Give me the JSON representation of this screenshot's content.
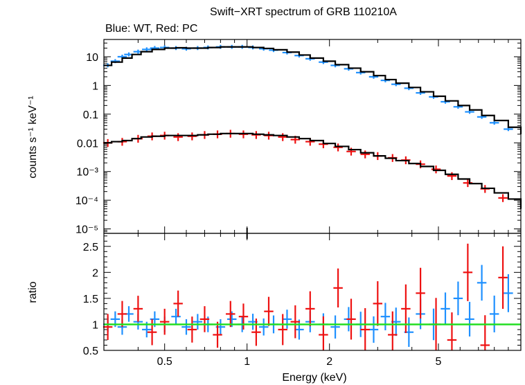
{
  "chart_data": {
    "type": "scatter",
    "title": "Swift−XRT spectrum of GRB 110210A",
    "subtitle": "Blue: WT, Red: PC",
    "xlabel": "Energy (keV)",
    "x_scale": "log",
    "xlim": [
      0.3,
      10
    ],
    "x_ticks": [
      {
        "value": 0.5,
        "label": "0.5"
      },
      {
        "value": 1,
        "label": "1"
      },
      {
        "value": 2,
        "label": "2"
      },
      {
        "value": 5,
        "label": "5"
      }
    ],
    "colors": {
      "wt": "#1e90ff",
      "pc": "#ee1111",
      "model": "#000000",
      "unity": "#22dd22"
    },
    "top_panel": {
      "ylabel": "counts s⁻¹ keV⁻¹",
      "y_scale": "log",
      "ylim": [
        7e-06,
        40
      ],
      "y_ticks": [
        {
          "value": 10,
          "label": "10"
        },
        {
          "value": 1,
          "label": "1"
        },
        {
          "value": 0.1,
          "label": "0.1"
        },
        {
          "value": 0.01,
          "label": "0.01"
        },
        {
          "value": 0.001,
          "label": "10⁻³"
        },
        {
          "value": 0.0001,
          "label": "10⁻⁴"
        },
        {
          "value": 1e-05,
          "label": "10⁻⁵"
        }
      ],
      "series": [
        {
          "key": "wt",
          "x": [
            0.31,
            0.33,
            0.35,
            0.37,
            0.4,
            0.43,
            0.46,
            0.5,
            0.55,
            0.6,
            0.66,
            0.72,
            0.8,
            0.88,
            0.96,
            1.05,
            1.15,
            1.25,
            1.4,
            1.55,
            1.7,
            1.9,
            2.1,
            2.35,
            2.6,
            2.9,
            3.2,
            3.5,
            3.9,
            4.3,
            4.8,
            5.3,
            5.9,
            6.5,
            7.2,
            8,
            9
          ],
          "y": [
            5,
            7,
            10,
            12,
            15,
            18,
            20,
            21,
            20,
            19,
            20,
            21,
            22,
            22,
            22,
            21,
            19,
            17,
            14,
            11,
            8.5,
            6.5,
            5,
            3.8,
            2.8,
            2.0,
            1.5,
            1.1,
            0.8,
            0.55,
            0.4,
            0.27,
            0.18,
            0.12,
            0.08,
            0.05,
            0.03
          ]
        },
        {
          "key": "pc",
          "x": [
            0.31,
            0.35,
            0.4,
            0.45,
            0.5,
            0.56,
            0.63,
            0.7,
            0.78,
            0.87,
            0.97,
            1.08,
            1.2,
            1.35,
            1.5,
            1.7,
            1.9,
            2.15,
            2.4,
            2.7,
            3.0,
            3.4,
            3.8,
            4.3,
            4.9,
            5.6,
            6.4,
            7.4,
            8.6
          ],
          "y": [
            0.01,
            0.011,
            0.014,
            0.017,
            0.018,
            0.016,
            0.017,
            0.019,
            0.02,
            0.021,
            0.02,
            0.019,
            0.018,
            0.016,
            0.013,
            0.011,
            0.009,
            0.007,
            0.005,
            0.004,
            0.0035,
            0.003,
            0.0025,
            0.0018,
            0.0012,
            0.0007,
            0.0004,
            0.00025,
            0.00012
          ]
        }
      ],
      "model": {
        "x": [
          0.3,
          0.32,
          0.35,
          0.38,
          0.41,
          0.45,
          0.5,
          0.55,
          0.6,
          0.66,
          0.72,
          0.8,
          0.88,
          0.96,
          1.05,
          1.15,
          1.25,
          1.4,
          1.55,
          1.7,
          1.9,
          2.1,
          2.35,
          2.6,
          2.9,
          3.2,
          3.5,
          3.9,
          4.3,
          4.8,
          5.3,
          5.9,
          6.5,
          7.2,
          8,
          9,
          10
        ],
        "wt": [
          5,
          6.5,
          9,
          12,
          15,
          18,
          20,
          20.5,
          20,
          20,
          21,
          22,
          22,
          22,
          21,
          19.5,
          17.5,
          14.5,
          11.5,
          9,
          7,
          5.3,
          4,
          3,
          2.2,
          1.6,
          1.2,
          0.85,
          0.6,
          0.42,
          0.29,
          0.2,
          0.14,
          0.09,
          0.06,
          0.035,
          0.02
        ],
        "pc": [
          0.01,
          0.011,
          0.012,
          0.014,
          0.016,
          0.017,
          0.018,
          0.018,
          0.018,
          0.019,
          0.02,
          0.021,
          0.021,
          0.021,
          0.02,
          0.019,
          0.018,
          0.016,
          0.014,
          0.012,
          0.0095,
          0.0075,
          0.0058,
          0.0045,
          0.0035,
          0.0029,
          0.0024,
          0.0019,
          0.0015,
          0.0011,
          0.0008,
          0.00055,
          0.00038,
          0.00026,
          0.00018,
          0.00011,
          5e-05
        ]
      }
    },
    "bottom_panel": {
      "ylabel": "ratio",
      "y_scale": "linear",
      "ylim": [
        0.5,
        2.75
      ],
      "y_ticks": [
        {
          "value": 0.5,
          "label": "0.5"
        },
        {
          "value": 1,
          "label": "1"
        },
        {
          "value": 1.5,
          "label": "1.5"
        },
        {
          "value": 2,
          "label": "2"
        },
        {
          "value": 2.5,
          "label": "2.5"
        }
      ],
      "unity_line": 1,
      "series": [
        {
          "key": "wt",
          "x": [
            0.31,
            0.33,
            0.35,
            0.37,
            0.4,
            0.43,
            0.46,
            0.5,
            0.55,
            0.6,
            0.66,
            0.72,
            0.8,
            0.88,
            0.96,
            1.05,
            1.15,
            1.25,
            1.4,
            1.55,
            1.7,
            1.9,
            2.1,
            2.35,
            2.6,
            2.9,
            3.2,
            3.5,
            3.9,
            4.3,
            4.8,
            5.3,
            5.9,
            6.5,
            7.2,
            8,
            9
          ],
          "y": [
            1.0,
            1.1,
            0.95,
            1.2,
            1.05,
            0.9,
            1.1,
            1.0,
            1.15,
            0.95,
            1.05,
            1.0,
            0.95,
            1.1,
            1.0,
            1.05,
            0.95,
            1.0,
            1.1,
            0.9,
            1.05,
            1.0,
            0.95,
            1.1,
            1.0,
            0.9,
            1.15,
            1.05,
            0.85,
            1.2,
            1.0,
            1.3,
            1.5,
            1.1,
            1.8,
            1.2,
            1.6
          ]
        },
        {
          "key": "pc",
          "x": [
            0.31,
            0.35,
            0.4,
            0.45,
            0.5,
            0.56,
            0.63,
            0.7,
            0.78,
            0.87,
            0.97,
            1.08,
            1.2,
            1.35,
            1.5,
            1.7,
            1.9,
            2.15,
            2.4,
            2.7,
            3.0,
            3.4,
            3.8,
            4.3,
            4.9,
            5.6,
            6.4,
            7.4,
            8.6
          ],
          "y": [
            0.95,
            1.2,
            1.3,
            0.85,
            1.05,
            1.4,
            0.9,
            1.1,
            0.8,
            1.2,
            1.15,
            0.85,
            1.25,
            0.9,
            1.05,
            1.3,
            0.8,
            1.7,
            1.1,
            0.9,
            1.4,
            0.8,
            1.3,
            1.6,
            1.0,
            0.7,
            2.0,
            0.6,
            1.9
          ]
        }
      ]
    }
  }
}
